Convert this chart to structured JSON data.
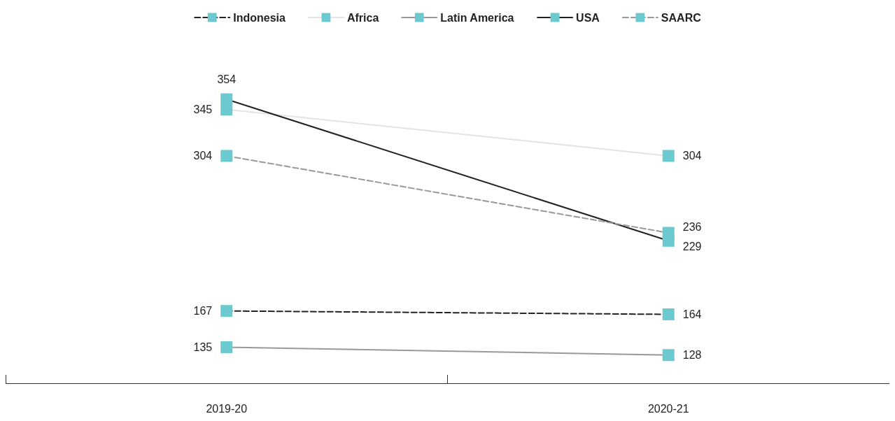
{
  "chart_data": {
    "type": "line",
    "categories": [
      "2019-20",
      "2020-21"
    ],
    "series": [
      {
        "name": "Indonesia",
        "color": "#222222",
        "line_style": "dashed",
        "values": [
          167,
          164
        ]
      },
      {
        "name": "Africa",
        "color": "#e3e3e3",
        "line_style": "solid",
        "values": [
          345,
          304
        ]
      },
      {
        "name": "Latin America",
        "color": "#999999",
        "line_style": "solid",
        "values": [
          135,
          128
        ]
      },
      {
        "name": "USA",
        "color": "#222222",
        "line_style": "solid",
        "values": [
          354,
          229
        ]
      },
      {
        "name": "SAARC",
        "color": "#999999",
        "line_style": "dashed",
        "values": [
          304,
          236
        ]
      }
    ],
    "marker": "square",
    "data_labels": true,
    "grid": false,
    "legend": "top",
    "tick_labels": "x"
  }
}
